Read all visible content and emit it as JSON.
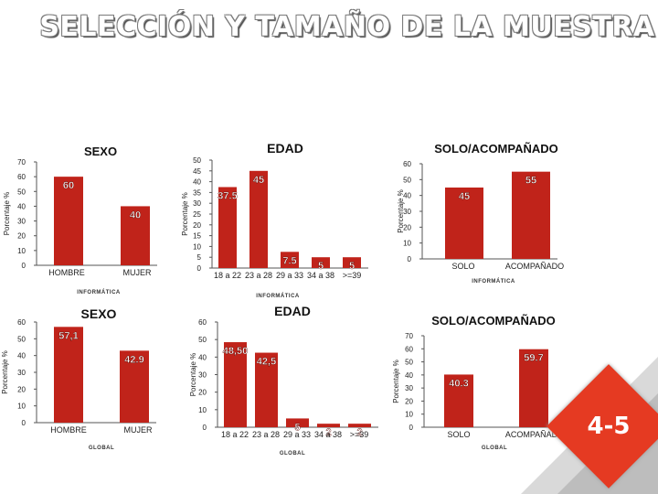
{
  "page": {
    "title": "SELECCIÓN Y TAMAÑO DE LA MUESTRA",
    "badge": "4-5",
    "colors": {
      "bar": "#c0231a",
      "value_text": "#ffffff",
      "axis": "#555555"
    }
  },
  "chart_data": [
    {
      "id": "info_sexo",
      "type": "bar",
      "title": "SEXO",
      "ylabel": "Porcentaje %",
      "ylim": [
        0,
        70
      ],
      "yticks": [
        0,
        10,
        20,
        30,
        40,
        50,
        60,
        70
      ],
      "footer": "INFORMÁTICA",
      "categories": [
        "HOMBRE",
        "MUJER"
      ],
      "values": [
        60,
        40
      ],
      "value_labels": [
        "60",
        "40"
      ]
    },
    {
      "id": "info_edad",
      "type": "bar",
      "title": "EDAD",
      "ylabel": "Porcentaje %",
      "ylim": [
        0,
        50
      ],
      "yticks": [
        0,
        5,
        10,
        15,
        20,
        25,
        30,
        35,
        40,
        45,
        50
      ],
      "footer": "INFORMÁTICA",
      "categories": [
        "18 a 22",
        "23 a 28",
        "29 a 33",
        "34 a 38",
        ">=39"
      ],
      "values": [
        37.5,
        45,
        7.5,
        5,
        5
      ],
      "value_labels": [
        "37.5",
        "45",
        "7.5",
        "5",
        "5"
      ]
    },
    {
      "id": "info_solo",
      "type": "bar",
      "title": "SOLO/ACOMPAÑADO",
      "ylabel": "Porcentaje %",
      "ylim": [
        0,
        60
      ],
      "yticks": [
        0,
        10,
        20,
        30,
        40,
        50,
        60
      ],
      "footer": "INFORMÁTICA",
      "categories": [
        "SOLO",
        "ACOMPAÑADO"
      ],
      "values": [
        45,
        55
      ],
      "value_labels": [
        "45",
        "55"
      ]
    },
    {
      "id": "global_sexo",
      "type": "bar",
      "title": "SEXO",
      "ylabel": "Porcentaje %",
      "ylim": [
        0,
        60
      ],
      "yticks": [
        0,
        10,
        20,
        30,
        40,
        50,
        60
      ],
      "footer": "GLOBAL",
      "categories": [
        "HOMBRE",
        "MUJER"
      ],
      "values": [
        57.1,
        42.9
      ],
      "value_labels": [
        "57,1",
        "42.9"
      ]
    },
    {
      "id": "global_edad",
      "type": "bar",
      "title": "EDAD",
      "ylabel": "Porcentaje %",
      "ylim": [
        0,
        60
      ],
      "yticks": [
        0,
        10,
        20,
        30,
        40,
        50,
        60
      ],
      "footer": "GLOBAL",
      "categories": [
        "18 a 22",
        "23 a 28",
        "29 a 33",
        "34 a 38",
        ">=39"
      ],
      "values": [
        48.5,
        42.5,
        5,
        2,
        2
      ],
      "value_labels": [
        "48,50",
        "42,5",
        "5",
        "2",
        "2"
      ]
    },
    {
      "id": "global_solo",
      "type": "bar",
      "title": "SOLO/ACOMPAÑADO",
      "ylabel": "Porcentaje %",
      "ylim": [
        0,
        70
      ],
      "yticks": [
        0,
        10,
        20,
        30,
        40,
        50,
        60,
        70
      ],
      "footer": "GLOBAL",
      "categories": [
        "SOLO",
        "ACOMPAÑADO"
      ],
      "values": [
        40.3,
        59.7
      ],
      "value_labels": [
        "40.3",
        "59.7"
      ]
    }
  ]
}
